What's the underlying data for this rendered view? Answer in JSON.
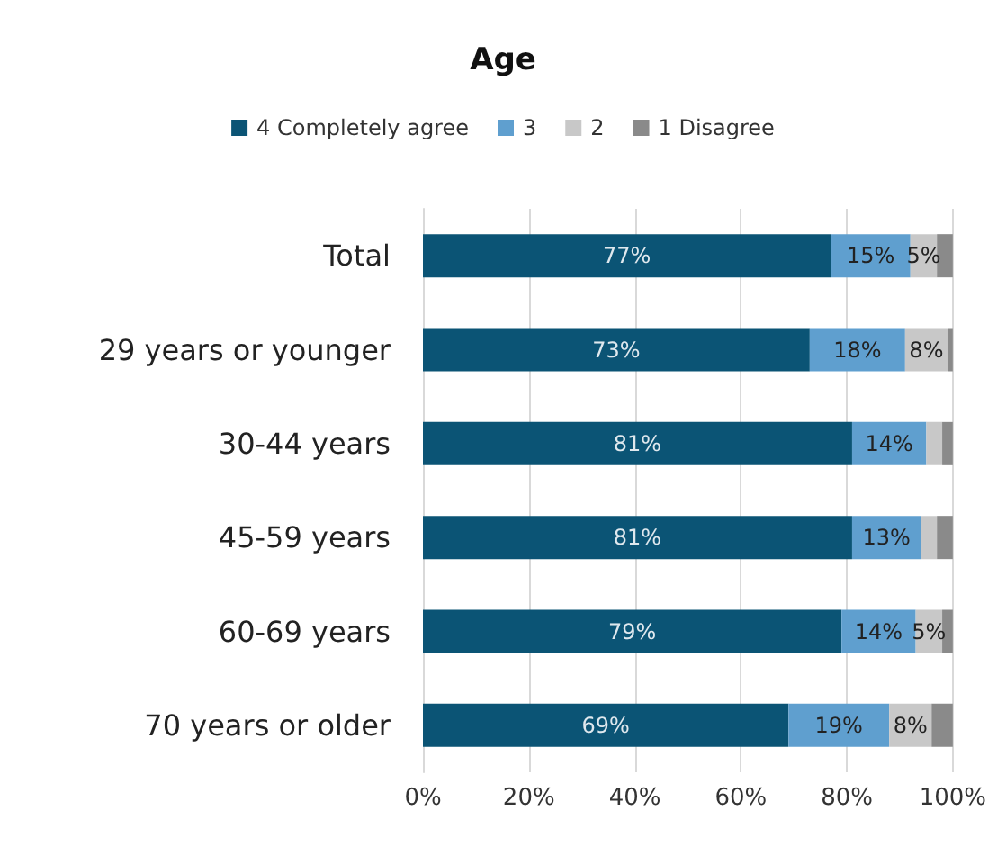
{
  "chart_data": {
    "type": "bar",
    "title": "Age",
    "orientation": "horizontal",
    "stacked": true,
    "categories": [
      "Total",
      "29 years or younger",
      "30-44 years",
      "45-59 years",
      "60-69 years",
      "70 years or older"
    ],
    "series": [
      {
        "name": "4 Completely agree",
        "color": "#0b5475",
        "values": [
          77,
          73,
          81,
          81,
          79,
          69
        ],
        "value_labels": [
          "77%",
          "73%",
          "81%",
          "81%",
          "79%",
          "69%"
        ]
      },
      {
        "name": "3",
        "color": "#5f9fcf",
        "values": [
          15,
          18,
          14,
          13,
          14,
          19
        ],
        "value_labels": [
          "15%",
          "18%",
          "14%",
          "13%",
          "14%",
          "19%"
        ]
      },
      {
        "name": "2",
        "color": "#c8c8c8",
        "values": [
          5,
          8,
          3,
          3,
          5,
          8
        ],
        "value_labels": [
          "5%",
          "8%",
          null,
          null,
          "5%",
          "8%"
        ]
      },
      {
        "name": "1 Disagree",
        "color": "#8a8a8a",
        "values": [
          3,
          1,
          2,
          3,
          2,
          4
        ],
        "value_labels": [
          null,
          null,
          null,
          null,
          null,
          null
        ]
      }
    ],
    "xlim": [
      0,
      100
    ],
    "xticks": [
      {
        "value": 0,
        "label": "0%"
      },
      {
        "value": 20,
        "label": "20%"
      },
      {
        "value": 40,
        "label": "40%"
      },
      {
        "value": 60,
        "label": "60%"
      },
      {
        "value": 80,
        "label": "80%"
      },
      {
        "value": 100,
        "label": "100%"
      }
    ],
    "grid": "x",
    "legend": "top"
  }
}
